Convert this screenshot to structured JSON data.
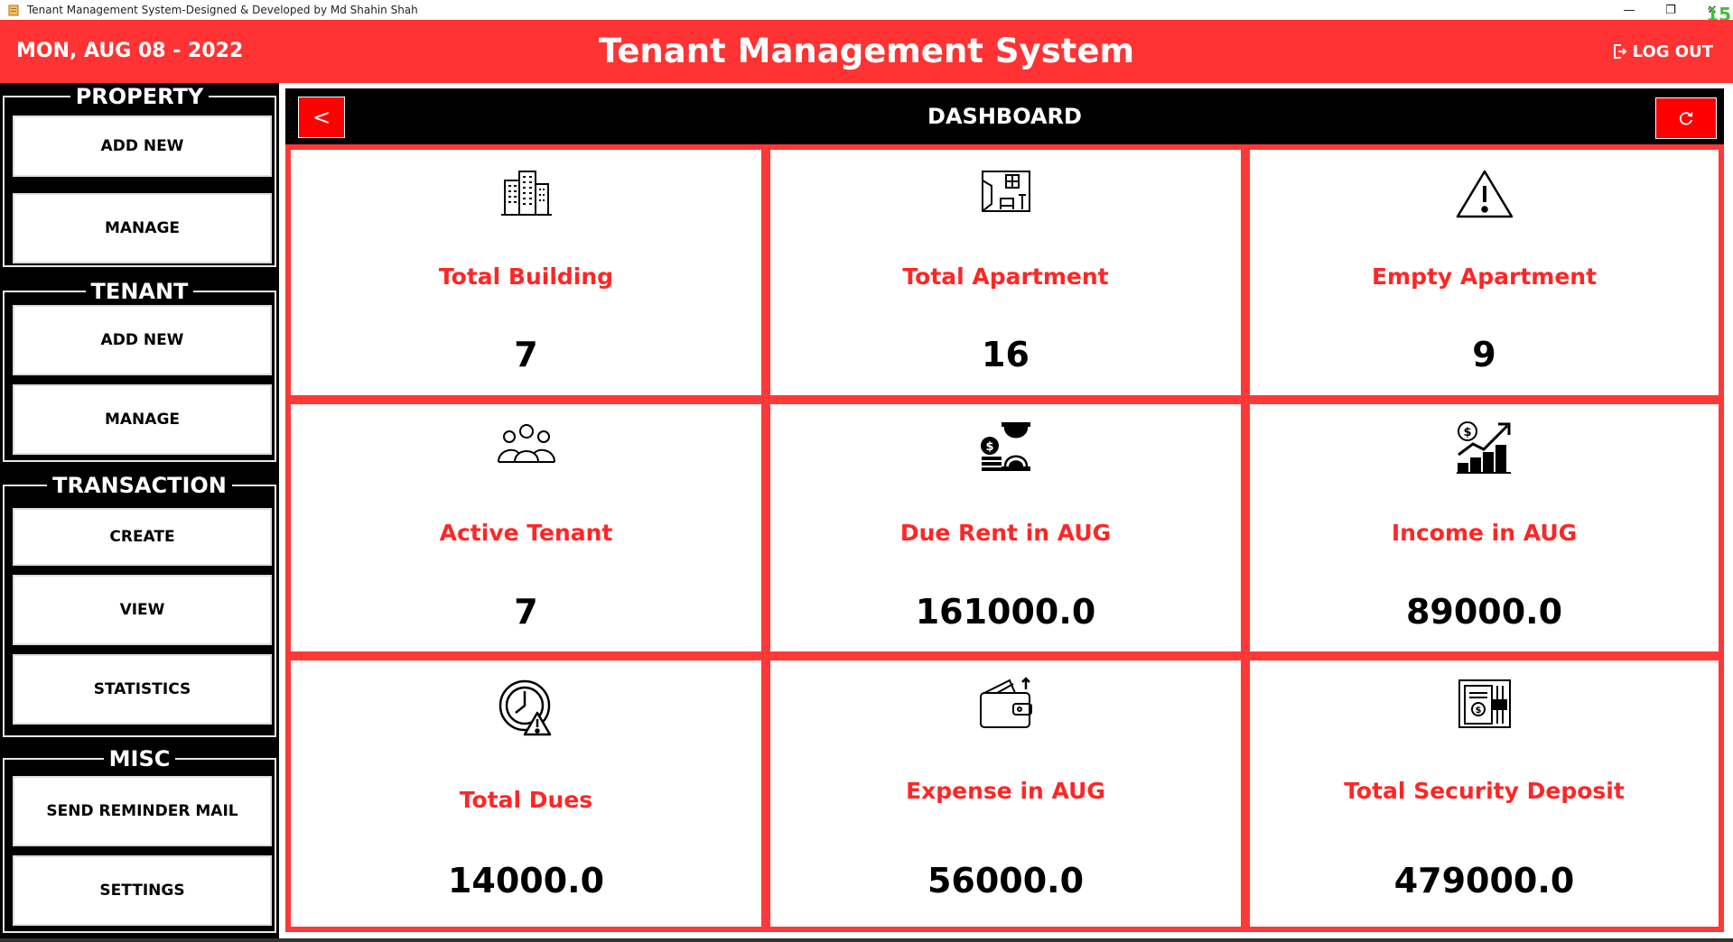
{
  "window": {
    "title": "Tenant Management System-Designed & Developed by Md Shahin Shah",
    "minimize": "—",
    "maximize": "❐",
    "close": "✕",
    "fps": "15"
  },
  "header": {
    "date": "MON, AUG 08 - 2022",
    "title": "Tenant Management System",
    "logout": "LOG OUT"
  },
  "sidebar": {
    "groups": [
      {
        "title": "PROPERTY",
        "buttons": [
          "ADD NEW",
          "MANAGE"
        ]
      },
      {
        "title": "TENANT",
        "buttons": [
          "ADD NEW",
          "MANAGE"
        ]
      },
      {
        "title": "TRANSACTION",
        "buttons": [
          "CREATE",
          "VIEW",
          "STATISTICS"
        ]
      },
      {
        "title": "MISC",
        "buttons": [
          "SEND REMINDER MAIL",
          "SETTINGS"
        ]
      }
    ]
  },
  "dashboard": {
    "back": "<",
    "title": "DASHBOARD",
    "cards": [
      {
        "label": "Total Building",
        "value": "7",
        "icon": "buildings-icon"
      },
      {
        "label": "Total Apartment",
        "value": "16",
        "icon": "apartment-icon"
      },
      {
        "label": "Empty Apartment",
        "value": "9",
        "icon": "warning-icon"
      },
      {
        "label": "Active Tenant",
        "value": "7",
        "icon": "users-icon"
      },
      {
        "label": "Due Rent in AUG",
        "value": "161000.0",
        "icon": "hourglass-money-icon"
      },
      {
        "label": "Income in AUG",
        "value": "89000.0",
        "icon": "income-chart-icon"
      },
      {
        "label": "Total Dues",
        "value": "14000.0",
        "icon": "clock-alert-icon"
      },
      {
        "label": "Expense in AUG",
        "value": "56000.0",
        "icon": "wallet-icon"
      },
      {
        "label": "Total Security Deposit",
        "value": "479000.0",
        "icon": "deposit-icon"
      }
    ]
  },
  "colors": {
    "accent": "#ff3333",
    "label": "#ff2626",
    "sidebar": "#000000"
  }
}
